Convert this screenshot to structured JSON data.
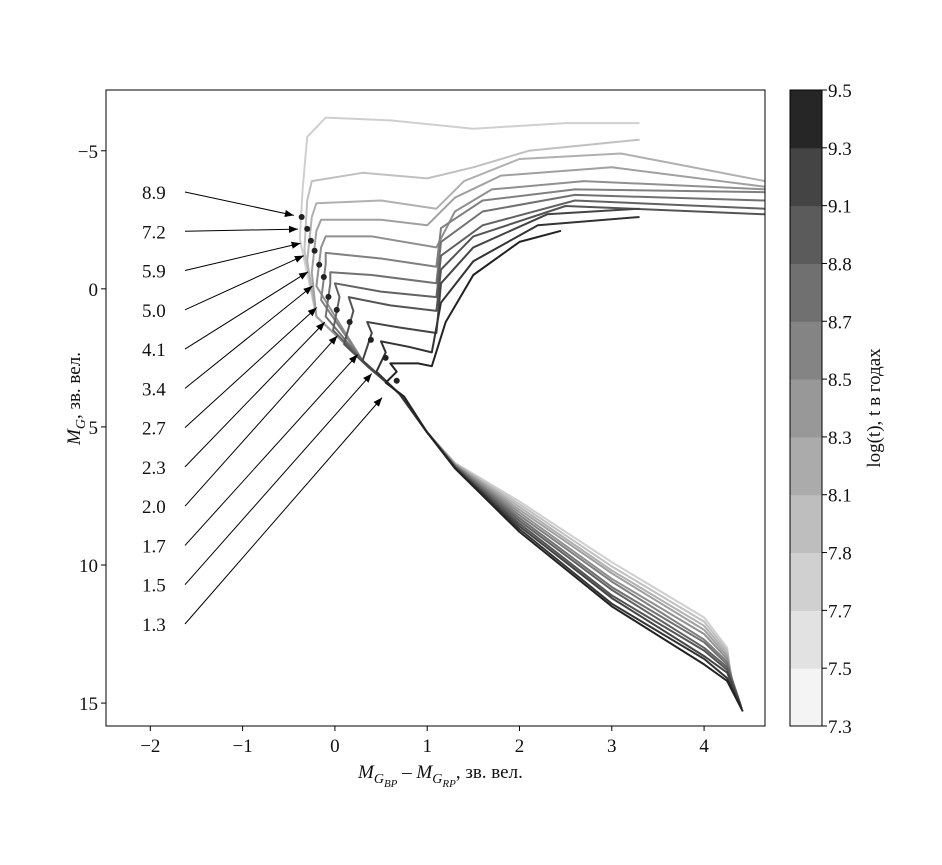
{
  "chart_data": {
    "type": "line",
    "x_label": [
      {
        "text": "M",
        "style": "italic"
      },
      {
        "text": "G",
        "style": "sub"
      },
      {
        "text": "BP",
        "style": "subsub"
      },
      {
        "text": " – ",
        "style": "normal"
      },
      {
        "text": "M",
        "style": "italic"
      },
      {
        "text": "G",
        "style": "sub"
      },
      {
        "text": "RP",
        "style": "subsub"
      },
      {
        "text": ", зв. вел.",
        "style": "normal"
      }
    ],
    "y_label": [
      {
        "text": "M",
        "style": "italic"
      },
      {
        "text": "G",
        "style": "sub"
      },
      {
        "text": ", зв. вел.",
        "style": "normal"
      }
    ],
    "xlim": [
      -2.48,
      4.66
    ],
    "ylim": [
      -7.2,
      15.83
    ],
    "y_inverted": true,
    "xticks": [
      {
        "value": -2,
        "label": "−2"
      },
      {
        "value": -1,
        "label": "−1"
      },
      0,
      1,
      2,
      3,
      4
    ],
    "yticks": [
      {
        "value": -5,
        "label": "−5"
      },
      0,
      5,
      10,
      15
    ],
    "grid": false,
    "colorbar": {
      "label": "log(t), t в годах",
      "ticks": [
        7.3,
        7.5,
        7.7,
        7.8,
        8.1,
        8.3,
        8.5,
        8.7,
        8.8,
        9.1,
        9.3,
        9.5
      ],
      "colors": [
        "#f4f4f4",
        "#e2e2e2",
        "#d0d0d0",
        "#bebebe",
        "#ababab",
        "#989898",
        "#848484",
        "#707070",
        "#5b5b5b",
        "#444444",
        "#262626"
      ]
    },
    "series": [
      {
        "color": "#cfcfcf",
        "x": [
          3.3,
          2.5,
          1.5,
          0.6,
          -0.1,
          -0.3,
          -0.35,
          -0.38,
          -0.2,
          0.3,
          0.7,
          1.0,
          1.3,
          2,
          3,
          4,
          4.25,
          4.3
        ],
        "y": [
          -6.0,
          -6.0,
          -5.8,
          -6.1,
          -6.2,
          -5.5,
          -3.6,
          -1.8,
          1.0,
          2.6,
          3.8,
          5.2,
          6.3,
          7.7,
          9.9,
          11.9,
          13.0,
          14.3
        ]
      },
      {
        "color": "#c0c0c0",
        "x": [
          3.3,
          2.1,
          1.5,
          1.0,
          0.3,
          -0.25,
          -0.3,
          -0.33,
          -0.2,
          0.3,
          0.7,
          1.0,
          1.3,
          2,
          3,
          4,
          4.25,
          4.31
        ],
        "y": [
          -5.4,
          -5.0,
          -4.4,
          -4.0,
          -4.2,
          -3.9,
          -3.2,
          -1.4,
          1.0,
          2.6,
          3.8,
          5.2,
          6.32,
          7.8,
          10.05,
          12.05,
          13.1,
          14.4
        ]
      },
      {
        "color": "#b0b0b0",
        "x": [
          4.66,
          3.1,
          2.0,
          1.4,
          1.1,
          0.5,
          -0.2,
          -0.25,
          -0.3,
          -0.2,
          0.3,
          0.7,
          1.0,
          1.3,
          2,
          3,
          4,
          4.25,
          4.32
        ],
        "y": [
          -3.9,
          -4.9,
          -4.7,
          -3.9,
          -2.9,
          -3.2,
          -3.1,
          -2.6,
          -1.0,
          1.0,
          2.6,
          3.8,
          5.2,
          6.34,
          7.9,
          10.2,
          12.2,
          13.2,
          14.5
        ]
      },
      {
        "color": "#a0a0a0",
        "x": [
          4.66,
          3.0,
          1.8,
          1.3,
          1.0,
          0.5,
          -0.15,
          -0.2,
          -0.25,
          -0.2,
          0.3,
          0.7,
          1.0,
          1.3,
          2,
          3,
          4,
          4.25,
          4.33
        ],
        "y": [
          -3.7,
          -4.4,
          -4.1,
          -3.3,
          -2.3,
          -2.5,
          -2.5,
          -2.1,
          -0.6,
          1.0,
          2.6,
          3.8,
          5.2,
          6.35,
          8.0,
          10.3,
          12.35,
          13.3,
          14.6
        ]
      },
      {
        "color": "#909090",
        "x": [
          4.66,
          2.7,
          1.7,
          1.3,
          1.1,
          0.4,
          -0.1,
          -0.15,
          -0.2,
          0.3,
          0.7,
          1.0,
          1.3,
          2,
          3,
          4,
          4.25,
          4.34
        ],
        "y": [
          -3.6,
          -3.9,
          -3.6,
          -2.8,
          -1.5,
          -1.9,
          -1.9,
          -1.5,
          -0.1,
          2.6,
          3.8,
          5.2,
          6.37,
          8.1,
          10.5,
          12.5,
          13.4,
          14.7
        ]
      },
      {
        "color": "#808080",
        "x": [
          4.66,
          2.6,
          1.6,
          1.15,
          1.1,
          0.5,
          -0.1,
          -0.1,
          -0.15,
          0.3,
          0.7,
          1.0,
          1.3,
          2,
          3,
          4,
          4.25,
          4.35
        ],
        "y": [
          -3.5,
          -3.6,
          -3.2,
          -2.2,
          -0.8,
          -1.1,
          -1.3,
          -0.9,
          0.4,
          2.6,
          3.8,
          5.2,
          6.39,
          8.2,
          10.6,
          12.7,
          13.5,
          14.8
        ]
      },
      {
        "color": "#717171",
        "x": [
          4.66,
          2.6,
          1.6,
          1.15,
          1.1,
          0.4,
          -0.05,
          -0.05,
          -0.1,
          0.3,
          0.7,
          1.0,
          1.3,
          2,
          3,
          4,
          4.25,
          4.37
        ],
        "y": [
          -3.2,
          -3.4,
          -2.8,
          -1.7,
          -0.2,
          -0.5,
          -0.6,
          -0.2,
          1.0,
          2.6,
          3.8,
          5.2,
          6.41,
          8.3,
          10.8,
          12.8,
          13.6,
          14.8
        ]
      },
      {
        "color": "#626262",
        "x": [
          4.66,
          2.6,
          1.6,
          1.15,
          1.1,
          0.5,
          0.0,
          0.05,
          -0.02,
          0.3,
          0.7,
          1.0,
          1.3,
          2,
          3,
          4,
          4.25,
          4.38
        ],
        "y": [
          -2.9,
          -3.2,
          -2.3,
          -1.2,
          0.3,
          0.1,
          -0.2,
          0.3,
          1.5,
          2.6,
          3.8,
          5.2,
          6.43,
          8.4,
          10.9,
          13.0,
          13.7,
          14.9
        ]
      },
      {
        "color": "#545454",
        "x": [
          4.66,
          2.5,
          1.5,
          1.15,
          1.1,
          0.6,
          0.15,
          0.2,
          0.1,
          0.35,
          0.7,
          1.0,
          1.3,
          2,
          3,
          4,
          4.25,
          4.39
        ],
        "y": [
          -2.7,
          -3.0,
          -1.9,
          -0.7,
          0.8,
          0.6,
          0.3,
          0.8,
          2.0,
          2.8,
          3.8,
          5.2,
          6.45,
          8.5,
          11.1,
          13.1,
          13.8,
          15.0
        ]
      },
      {
        "color": "#444444",
        "x": [
          3.3,
          2.3,
          1.5,
          1.15,
          1.1,
          0.7,
          0.35,
          0.4,
          0.3,
          0.7,
          1.0,
          1.3,
          2,
          3,
          4,
          4.25,
          4.4
        ],
        "y": [
          -2.9,
          -2.7,
          -1.5,
          -0.2,
          1.6,
          1.4,
          1.2,
          1.6,
          2.6,
          3.8,
          5.2,
          6.46,
          8.6,
          11.2,
          13.3,
          13.9,
          15.1
        ]
      },
      {
        "color": "#333333",
        "x": [
          3.3,
          2.2,
          1.5,
          1.15,
          1.05,
          0.8,
          0.5,
          0.55,
          0.45,
          0.7,
          1.0,
          1.3,
          2,
          3,
          4,
          4.25,
          4.41
        ],
        "y": [
          -2.6,
          -2.3,
          -1.0,
          0.5,
          2.3,
          2.1,
          1.9,
          2.3,
          3.0,
          3.8,
          5.2,
          6.48,
          8.7,
          11.4,
          13.4,
          14.1,
          15.2
        ]
      },
      {
        "color": "#222222",
        "x": [
          2.45,
          2.0,
          1.5,
          1.2,
          1.05,
          0.9,
          0.6,
          0.67,
          0.55,
          0.75,
          1.0,
          1.3,
          2,
          3,
          4,
          4.25,
          4.42
        ],
        "y": [
          -2.1,
          -1.7,
          -0.5,
          1.2,
          2.8,
          2.7,
          2.7,
          3.0,
          3.4,
          3.9,
          5.2,
          6.5,
          8.8,
          11.5,
          13.6,
          14.2,
          15.3
        ]
      }
    ],
    "annotations": [
      {
        "label": "8.9",
        "x": -0.36,
        "y": -2.6
      },
      {
        "label": "7.2",
        "x": -0.3,
        "y": -2.17
      },
      {
        "label": "5.9",
        "x": -0.26,
        "y": -1.74
      },
      {
        "label": "5.0",
        "x": -0.22,
        "y": -1.38
      },
      {
        "label": "4.1",
        "x": -0.17,
        "y": -0.87
      },
      {
        "label": "3.4",
        "x": -0.12,
        "y": -0.43
      },
      {
        "label": "2.7",
        "x": -0.07,
        "y": 0.29
      },
      {
        "label": "2.3",
        "x": 0.02,
        "y": 0.76
      },
      {
        "label": "2.0",
        "x": 0.16,
        "y": 1.2
      },
      {
        "label": "1.7",
        "x": 0.39,
        "y": 1.85
      },
      {
        "label": "1.5",
        "x": 0.55,
        "y": 2.5
      },
      {
        "label": "1.3",
        "x": 0.67,
        "y": 3.33
      }
    ]
  }
}
